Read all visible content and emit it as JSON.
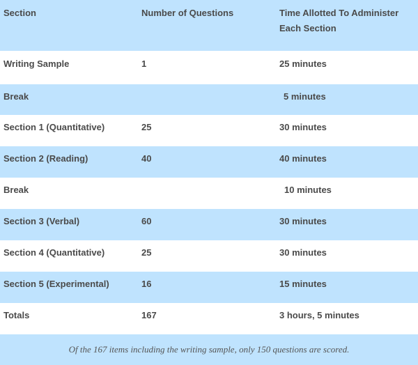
{
  "header": {
    "section": "Section",
    "questions": "Number of Questions",
    "time": "Time Allotted To Administer Each Section"
  },
  "rows": [
    {
      "section": "Writing Sample",
      "questions": "1",
      "time": "25 minutes"
    },
    {
      "section": "Break",
      "questions": "",
      "time": "5 minutes"
    },
    {
      "section": "Section 1 (Quantitative)",
      "questions": "25",
      "time": "30 minutes"
    },
    {
      "section": "Section 2 (Reading)",
      "questions": "40",
      "time": "40 minutes"
    },
    {
      "section": "Break",
      "questions": "",
      "time": "10 minutes"
    },
    {
      "section": "Section 3 (Verbal)",
      "questions": "60",
      "time": "30 minutes"
    },
    {
      "section": "Section 4 (Quantitative)",
      "questions": "25",
      "time": "30 minutes"
    },
    {
      "section": "Section 5 (Experimental)",
      "questions": "16",
      "time": "15 minutes"
    },
    {
      "section": "Totals",
      "questions": "167",
      "time": "3 hours, 5 minutes"
    }
  ],
  "footnote": "Of the 167 items including the writing sample, only 150 questions are scored.",
  "colors": {
    "row_blue": "#bfe3fe",
    "row_white": "#ffffff",
    "text": "#4a4a4a"
  }
}
